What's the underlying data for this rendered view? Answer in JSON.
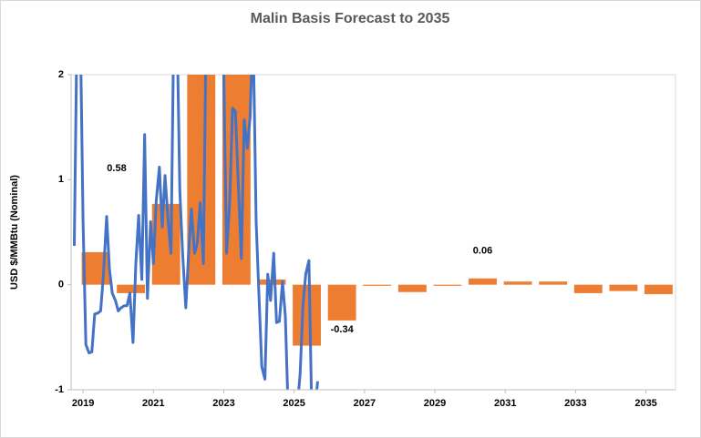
{
  "chart_data": {
    "type": "combo",
    "title": "Malin Basis Forecast to 2035",
    "ylabel": "USD $/MMBtu (Nominal)",
    "xlim": [
      2018.66,
      2035.84
    ],
    "xticks": [
      2019,
      2021,
      2023,
      2025,
      2027,
      2029,
      2031,
      2033,
      2035
    ],
    "ylim": [
      -1,
      2
    ],
    "yticks": [
      -1,
      0,
      1,
      2
    ],
    "grid": false,
    "annotations": [
      "0.58"
    ],
    "series": [
      {
        "type": "bar",
        "color": "#ed7d31",
        "x": [
          2019,
          2020,
          2021,
          2022,
          2023,
          2024,
          2025,
          2026,
          2027,
          2028,
          2029,
          2030,
          2031,
          2032,
          2033,
          2034,
          2035
        ],
        "values": [
          0.31,
          -0.08,
          0.77,
          2.5,
          2.5,
          0.05,
          -0.58,
          -0.34,
          -0.01,
          -0.07,
          -0.01,
          0.06,
          0.03,
          0.03,
          -0.08,
          -0.06,
          -0.09
        ],
        "value_labels": [
          null,
          null,
          null,
          null,
          null,
          null,
          null,
          "-0.34",
          null,
          null,
          null,
          "0.06",
          null,
          null,
          null,
          null,
          null
        ]
      },
      {
        "type": "line",
        "color": "#4472c4",
        "x": [
          2018.75,
          2018.83,
          2018.92,
          2019.0,
          2019.08,
          2019.17,
          2019.25,
          2019.33,
          2019.42,
          2019.5,
          2019.58,
          2019.67,
          2019.75,
          2019.83,
          2019.92,
          2020.0,
          2020.08,
          2020.17,
          2020.25,
          2020.33,
          2020.42,
          2020.5,
          2020.58,
          2020.67,
          2020.75,
          2020.83,
          2020.92,
          2021.0,
          2021.08,
          2021.17,
          2021.25,
          2021.33,
          2021.42,
          2021.5,
          2021.58,
          2021.67,
          2021.75,
          2021.83,
          2021.92,
          2022.0,
          2022.08,
          2022.17,
          2022.25,
          2022.33,
          2022.42,
          2022.5,
          2022.58,
          2022.67,
          2022.75,
          2022.83,
          2022.92,
          2023.0,
          2023.08,
          2023.17,
          2023.25,
          2023.33,
          2023.42,
          2023.5,
          2023.58,
          2023.67,
          2023.75,
          2023.83,
          2023.92,
          2024.0,
          2024.08,
          2024.17,
          2024.25,
          2024.33,
          2024.42,
          2024.5,
          2024.58,
          2024.67,
          2024.75,
          2024.83,
          2024.92,
          2025.0,
          2025.08,
          2025.17,
          2025.25,
          2025.33,
          2025.42,
          2025.5,
          2025.58,
          2025.67
        ],
        "values": [
          0.37,
          2.5,
          2.5,
          0.6,
          -0.57,
          -0.65,
          -0.64,
          -0.28,
          -0.27,
          -0.25,
          0.1,
          0.65,
          0.15,
          -0.08,
          -0.15,
          -0.25,
          -0.22,
          -0.2,
          -0.2,
          -0.08,
          -0.55,
          0.2,
          0.66,
          0.05,
          1.43,
          -0.13,
          0.6,
          0.2,
          0.8,
          1.12,
          0.55,
          1.04,
          0.6,
          0.3,
          2.5,
          2.5,
          0.9,
          0.3,
          -0.22,
          0.3,
          0.72,
          0.3,
          0.4,
          0.78,
          0.2,
          2.5,
          2.5,
          2.5,
          2.5,
          2.5,
          2.5,
          2.0,
          0.3,
          0.8,
          1.68,
          1.65,
          0.9,
          0.25,
          1.57,
          1.3,
          1.6,
          2.5,
          0.6,
          -0.1,
          -0.78,
          -0.9,
          0.1,
          -0.15,
          0.3,
          -0.36,
          -0.35,
          0.03,
          -0.3,
          -1.2,
          -1.2,
          -1.2,
          -1.2,
          -0.85,
          -0.2,
          0.1,
          0.23,
          -1.2,
          -1.2,
          -0.92
        ]
      }
    ]
  }
}
